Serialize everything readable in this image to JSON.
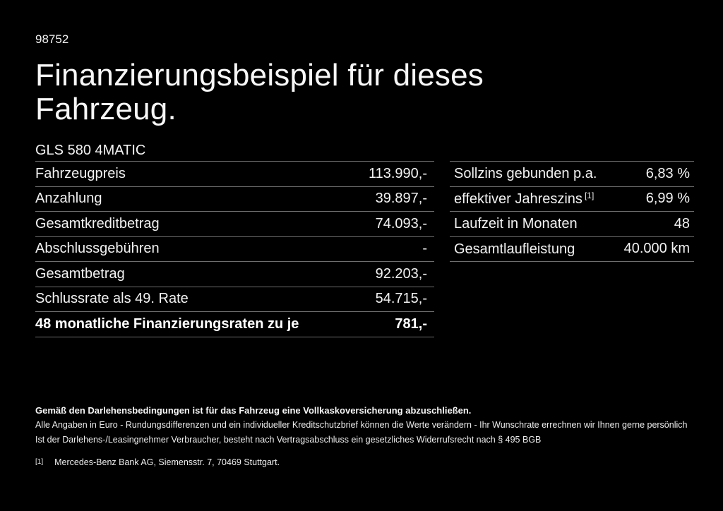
{
  "page": {
    "background_color": "#000000",
    "text_color": "#f2f2f2",
    "divider_color": "#6e6e6e",
    "ref_number": "98752",
    "title": "Finanzierungsbeispiel für dieses Fahrzeug.",
    "model": "GLS 580 4MATIC"
  },
  "finance_table": {
    "rows": [
      {
        "label": "Fahrzeugpreis",
        "value": "113.990,-"
      },
      {
        "label": "Anzahlung",
        "value": "39.897,-"
      },
      {
        "label": "Gesamtkreditbetrag",
        "value": "74.093,-"
      },
      {
        "label": "Abschlussgebühren",
        "value": "-"
      },
      {
        "label": "Gesamtbetrag",
        "value": "92.203,-"
      },
      {
        "label": "Schlussrate als 49. Rate",
        "value": "54.715,-"
      },
      {
        "label": "48 monatliche Finanzierungsraten zu je",
        "value": "781,-"
      }
    ]
  },
  "conditions_table": {
    "rows": [
      {
        "label": "Sollzins gebunden p.a.",
        "sup": "",
        "value": "6,83 %"
      },
      {
        "label": "effektiver Jahreszins",
        "sup": "[1]",
        "value": "6,99 %"
      },
      {
        "label": "Laufzeit in Monaten",
        "sup": "",
        "value": "48"
      },
      {
        "label": "Gesamtlaufleistung",
        "sup": "",
        "value": "40.000 km"
      }
    ]
  },
  "footer": {
    "insurance_note": "Gemäß den Darlehensbedingungen ist für das Fahrzeug eine Vollkaskoversicherung abzuschließen.",
    "disclaimer_line1": "Alle Angaben in Euro - Rundungsdifferenzen und ein individueller Kreditschutzbrief können die Werte verändern - Ihr Wunschrate errechnen wir Ihnen gerne persönlich",
    "disclaimer_line2": "Ist der Darlehens-/Leasingnehmer Verbraucher, besteht nach Vertragsabschluss ein gesetzliches Widerrufsrecht nach § 495 BGB",
    "footnote_marker": "[1]",
    "footnote_text": "Mercedes-Benz Bank AG, Siemensstr. 7, 70469 Stuttgart."
  }
}
